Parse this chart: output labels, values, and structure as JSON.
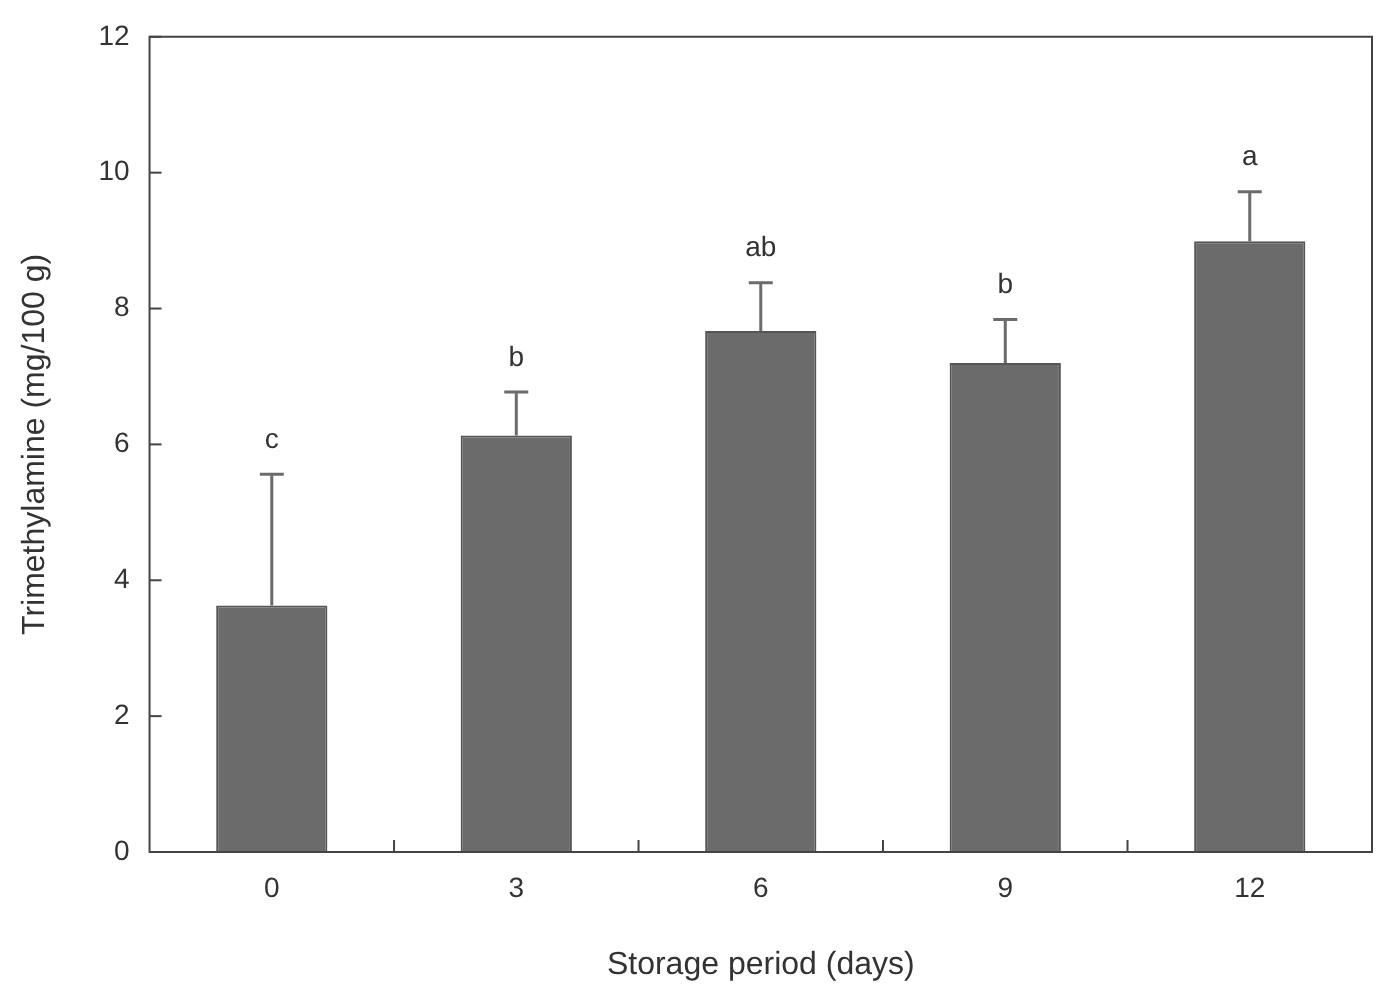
{
  "chart_data": {
    "type": "bar",
    "xlabel": "Storage period (days)",
    "ylabel": "Trimethylamine (mg/100 g)",
    "categories": [
      "0",
      "3",
      "6",
      "9",
      "12"
    ],
    "values": [
      3.63,
      6.13,
      7.67,
      7.2,
      8.99
    ],
    "errors": [
      [
        3.63,
        5.56
      ],
      [
        6.13,
        6.77
      ],
      [
        7.67,
        8.38
      ],
      [
        7.2,
        7.84
      ],
      [
        8.99,
        9.72
      ]
    ],
    "color": "#6b6b6b",
    "ylim": [
      0,
      12
    ],
    "yticks": [
      0,
      2,
      4,
      6,
      8,
      10,
      12
    ],
    "grid": false,
    "legend": false,
    "annotations": [
      {
        "text": "c",
        "x": "0",
        "y": 5.56
      },
      {
        "text": "b",
        "x": "3",
        "y": 6.77
      },
      {
        "text": "ab",
        "x": "6",
        "y": 8.38
      },
      {
        "text": "b",
        "x": "9",
        "y": 7.84
      },
      {
        "text": "a",
        "x": "12",
        "y": 9.72
      }
    ]
  }
}
